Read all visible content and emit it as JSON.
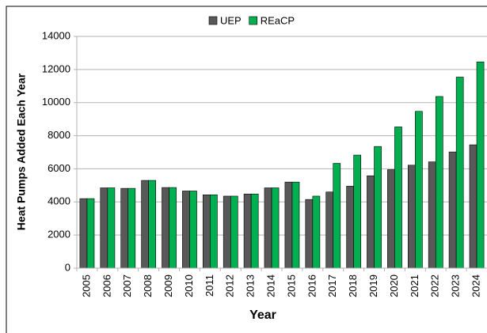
{
  "chart_data": {
    "type": "bar",
    "legend": "top",
    "x_label": "Year",
    "y_label": "Heat Pumps Added Each Year",
    "categories": [
      "2005",
      "2006",
      "2007",
      "2008",
      "2009",
      "2010",
      "2011",
      "2012",
      "2013",
      "2014",
      "2015",
      "2016",
      "2017",
      "2018",
      "2019",
      "2020",
      "2021",
      "2022",
      "2023",
      "2024"
    ],
    "series": [
      {
        "name": "UEP",
        "color": "#595959",
        "values": [
          4200,
          4850,
          4820,
          5300,
          4870,
          4660,
          4430,
          4350,
          4480,
          4850,
          5200,
          4150,
          4600,
          4950,
          5580,
          5950,
          6220,
          6420,
          7020,
          7450
        ]
      },
      {
        "name": "REaCP",
        "color": "#00b050",
        "values": [
          4200,
          4850,
          4820,
          5300,
          4870,
          4660,
          4430,
          4350,
          4480,
          4850,
          5200,
          4350,
          6330,
          6830,
          7350,
          8530,
          9470,
          10370,
          11540,
          12460
        ]
      }
    ],
    "ylim": [
      0,
      14000
    ],
    "yticks": [
      0,
      2000,
      4000,
      6000,
      8000,
      10000,
      12000,
      14000
    ],
    "grid": true
  }
}
